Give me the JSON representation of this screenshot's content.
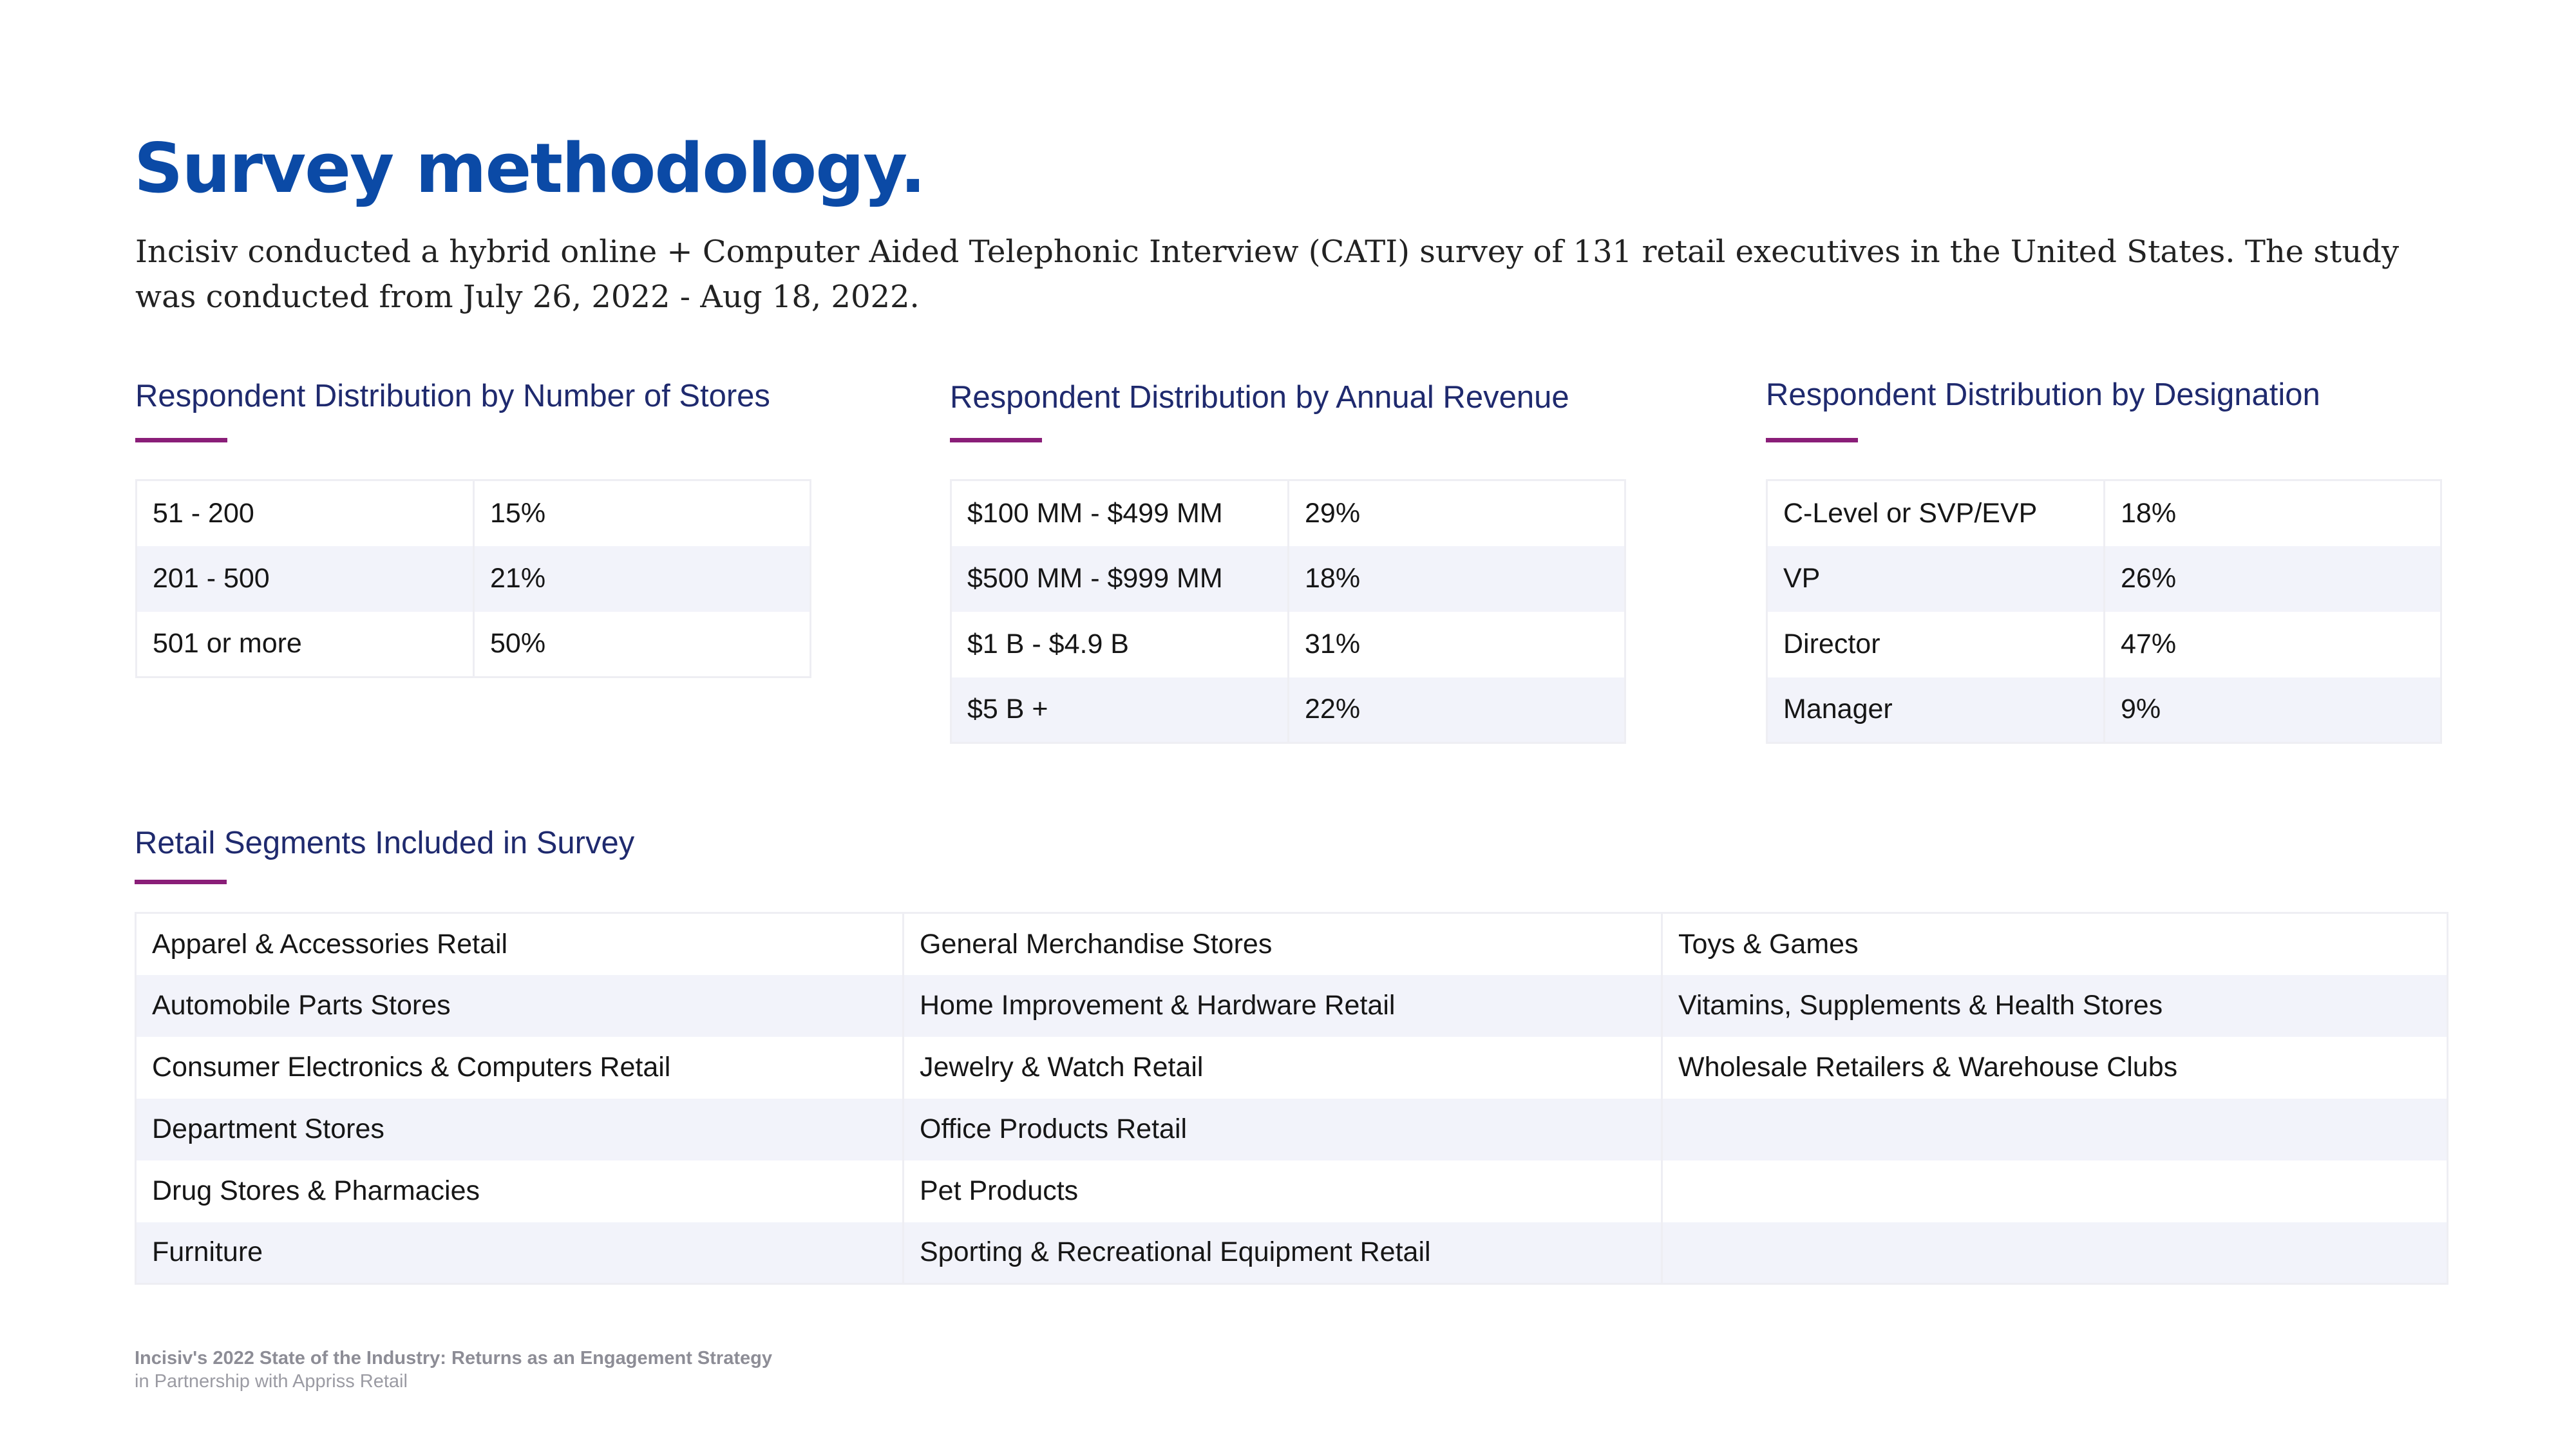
{
  "page": {
    "title": "Survey methodology.",
    "intro": "Incisiv conducted a hybrid online + Computer Aided Telephonic Interview (CATI) survey of 131 retail executives in the United States. The study was conducted from July 26, 2022 - Aug 18, 2022."
  },
  "stores": {
    "heading": "Respondent Distribution by Number of Stores",
    "rows": [
      {
        "label": "51 - 200",
        "value": "15%"
      },
      {
        "label": "201 - 500",
        "value": "21%"
      },
      {
        "label": "501 or more",
        "value": "50%"
      }
    ]
  },
  "revenue": {
    "heading": "Respondent Distribution by Annual Revenue",
    "rows": [
      {
        "label": "$100 MM - $499 MM",
        "value": "29%"
      },
      {
        "label": "$500 MM - $999 MM",
        "value": "18%"
      },
      {
        "label": "$1 B - $4.9 B",
        "value": "31%"
      },
      {
        "label": "$5 B +",
        "value": "22%"
      }
    ]
  },
  "designation": {
    "heading": "Respondent Distribution by Designation",
    "rows": [
      {
        "label": "C-Level or SVP/EVP",
        "value": "18%"
      },
      {
        "label": "VP",
        "value": "26%"
      },
      {
        "label": "Director",
        "value": "47%"
      },
      {
        "label": "Manager",
        "value": "9%"
      }
    ]
  },
  "segments": {
    "heading": "Retail Segments Included in Survey",
    "rows": [
      [
        "Apparel & Accessories Retail",
        "General Merchandise Stores",
        "Toys & Games"
      ],
      [
        "Automobile Parts Stores",
        "Home Improvement & Hardware Retail",
        "Vitamins, Supplements & Health Stores"
      ],
      [
        "Consumer Electronics & Computers Retail",
        "Jewelry & Watch Retail",
        "Wholesale Retailers & Warehouse Clubs"
      ],
      [
        "Department Stores",
        "Office Products Retail",
        ""
      ],
      [
        "Drug Stores & Pharmacies",
        "Pet Products",
        ""
      ],
      [
        "Furniture",
        "Sporting & Recreational Equipment Retail",
        ""
      ]
    ]
  },
  "footer": {
    "title": "Incisiv's 2022 State of the Industry: Returns as an Engagement Strategy",
    "subtitle": "in Partnership with Appriss Retail"
  }
}
